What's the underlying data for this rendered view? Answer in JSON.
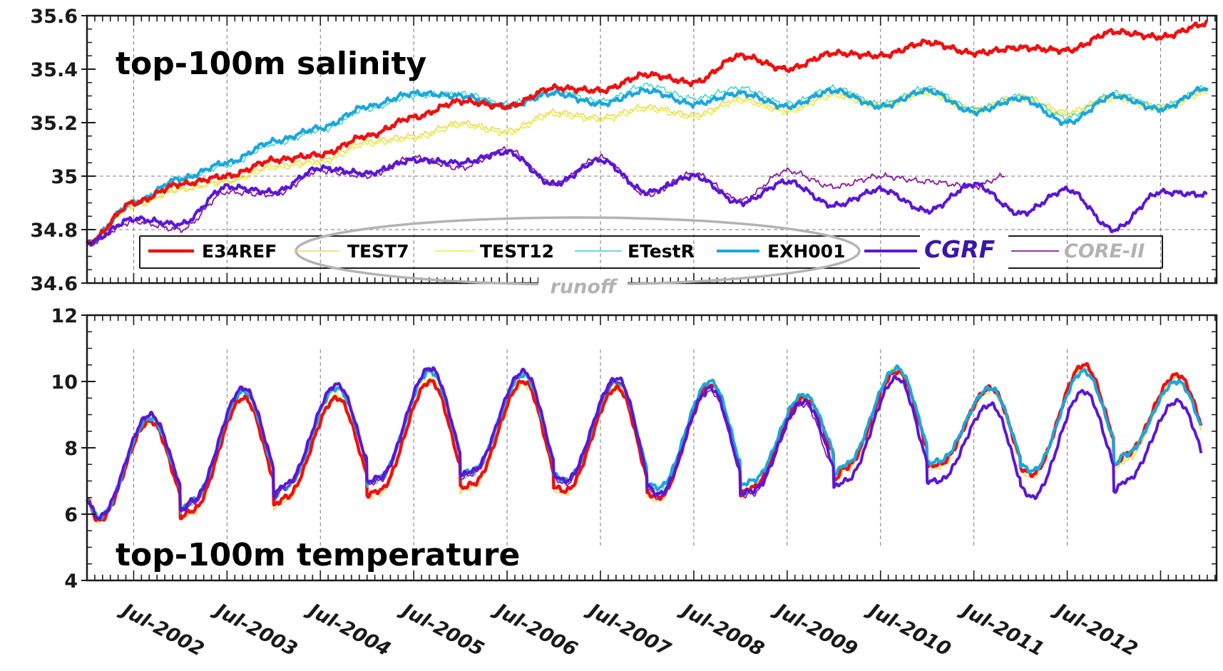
{
  "colors": {
    "E34REF": "#ee1111",
    "TEST7": "#f2d65a",
    "TEST12": "#e6f04a",
    "ETestR": "#3ad1c2",
    "EXH001": "#1aa7dc",
    "CGRF": "#5b17d4",
    "CORE-II": "#8a1a9c",
    "runoff_ellipse": "#b3b3b3",
    "core_label": "#b3b3b3"
  },
  "chart_data": [
    {
      "type": "line",
      "title": "top-100m salinity",
      "ylim": [
        34.6,
        35.6
      ],
      "yticks": [
        "34.6",
        "34.8",
        "35",
        "35.2",
        "35.4",
        "35.6"
      ],
      "x_range": [
        "2002-01",
        "2014-01"
      ],
      "grid": true,
      "legend": {
        "placement": "bottom-inside",
        "entries": [
          "E34REF",
          "TEST7",
          "TEST12",
          "ETestR",
          "EXH001",
          "CGRF",
          "CORE-II"
        ],
        "annotation": "runoff"
      },
      "series": [
        {
          "name": "E34REF",
          "x": [
            2002.0,
            2002.5,
            2003.0,
            2003.5,
            2004.0,
            2004.5,
            2005.0,
            2005.5,
            2006.0,
            2006.5,
            2007.0,
            2007.5,
            2008.0,
            2008.5,
            2009.0,
            2009.5,
            2010.0,
            2010.5,
            2011.0,
            2011.5,
            2012.0,
            2012.5,
            2013.0,
            2013.5,
            2014.0
          ],
          "y": [
            34.75,
            34.9,
            34.97,
            35.0,
            35.06,
            35.08,
            35.15,
            35.22,
            35.28,
            35.26,
            35.33,
            35.32,
            35.38,
            35.35,
            35.45,
            35.4,
            35.46,
            35.45,
            35.5,
            35.46,
            35.48,
            35.47,
            35.54,
            35.52,
            35.57
          ]
        },
        {
          "name": "TEST7",
          "x": [
            2002.0,
            2002.5,
            2003.0,
            2003.5,
            2004.0,
            2004.5,
            2005.0,
            2005.5,
            2006.0,
            2006.5,
            2007.0,
            2007.5,
            2008.0,
            2008.5,
            2009.0,
            2009.5,
            2010.0,
            2010.5,
            2011.0,
            2011.5,
            2012.0,
            2012.5,
            2013.0,
            2013.5,
            2014.0
          ],
          "y": [
            34.75,
            34.89,
            34.95,
            34.98,
            35.04,
            35.06,
            35.13,
            35.15,
            35.2,
            35.17,
            35.24,
            35.22,
            35.26,
            35.23,
            35.29,
            35.25,
            35.31,
            35.27,
            35.32,
            35.25,
            35.3,
            35.24,
            35.3,
            35.26,
            35.32
          ]
        },
        {
          "name": "TEST12",
          "x": [
            2002.0,
            2002.5,
            2003.0,
            2003.5,
            2004.0,
            2004.5,
            2005.0,
            2005.5,
            2006.0,
            2006.5,
            2007.0,
            2007.5,
            2008.0,
            2008.5,
            2009.0,
            2009.5,
            2010.0,
            2010.5,
            2011.0,
            2011.5,
            2012.0,
            2012.5,
            2013.0,
            2013.5,
            2014.0
          ],
          "y": [
            34.75,
            34.89,
            34.95,
            34.98,
            35.03,
            35.05,
            35.12,
            35.14,
            35.19,
            35.16,
            35.23,
            35.21,
            35.25,
            35.22,
            35.28,
            35.24,
            35.3,
            35.26,
            35.31,
            35.24,
            35.29,
            35.23,
            35.29,
            35.25,
            35.31
          ]
        },
        {
          "name": "ETestR",
          "x": [
            2002.0,
            2002.5,
            2003.0,
            2003.5,
            2004.0,
            2004.5,
            2005.0,
            2005.5,
            2006.0,
            2006.5,
            2007.0,
            2007.5,
            2008.0,
            2008.5,
            2009.0,
            2009.5,
            2010.0,
            2010.5,
            2011.0,
            2011.5,
            2012.0,
            2012.5,
            2013.0,
            2013.5,
            2014.0
          ],
          "y": [
            34.75,
            34.9,
            34.99,
            35.04,
            35.12,
            35.17,
            35.25,
            35.3,
            35.31,
            35.27,
            35.32,
            35.28,
            35.34,
            35.29,
            35.33,
            35.27,
            35.33,
            35.27,
            35.33,
            35.25,
            35.3,
            35.22,
            35.31,
            35.26,
            35.33
          ]
        },
        {
          "name": "EXH001",
          "x": [
            2002.0,
            2002.5,
            2003.0,
            2003.5,
            2004.0,
            2004.5,
            2005.0,
            2005.5,
            2006.0,
            2006.5,
            2007.0,
            2007.5,
            2008.0,
            2008.5,
            2009.0,
            2009.5,
            2010.0,
            2010.5,
            2011.0,
            2011.5,
            2012.0,
            2012.5,
            2013.0,
            2013.5,
            2014.0
          ],
          "y": [
            34.75,
            34.9,
            34.99,
            35.05,
            35.13,
            35.18,
            35.26,
            35.31,
            35.3,
            35.26,
            35.31,
            35.27,
            35.32,
            35.27,
            35.31,
            35.26,
            35.32,
            35.26,
            35.32,
            35.24,
            35.29,
            35.2,
            35.3,
            35.25,
            35.33
          ]
        },
        {
          "name": "CGRF",
          "x": [
            2002.0,
            2002.5,
            2003.0,
            2003.5,
            2004.0,
            2004.5,
            2005.0,
            2005.5,
            2006.0,
            2006.5,
            2007.0,
            2007.5,
            2008.0,
            2008.5,
            2009.0,
            2009.5,
            2010.0,
            2010.5,
            2011.0,
            2011.5,
            2012.0,
            2012.5,
            2013.0,
            2013.5,
            2014.0
          ],
          "y": [
            34.75,
            34.84,
            34.82,
            34.96,
            34.94,
            35.03,
            35.01,
            35.06,
            35.05,
            35.09,
            34.97,
            35.06,
            34.94,
            35.0,
            34.9,
            34.98,
            34.89,
            34.95,
            34.87,
            34.97,
            34.86,
            34.95,
            34.8,
            34.94,
            34.93
          ]
        },
        {
          "name": "CORE-II",
          "x": [
            2002.0,
            2002.5,
            2003.0,
            2003.5,
            2004.0,
            2004.5,
            2005.0,
            2005.5,
            2006.0,
            2006.5,
            2007.0,
            2007.5,
            2008.0,
            2008.5,
            2009.0,
            2009.5,
            2010.0,
            2010.5,
            2011.0,
            2011.5,
            2011.83
          ],
          "y": [
            34.75,
            34.83,
            34.8,
            34.94,
            34.93,
            35.02,
            35.0,
            35.07,
            35.03,
            35.1,
            34.97,
            35.07,
            34.93,
            35.01,
            34.91,
            35.02,
            34.96,
            35.0,
            34.98,
            34.96,
            35.0
          ]
        }
      ]
    },
    {
      "type": "line",
      "title": "top-100m temperature",
      "ylim": [
        4,
        12
      ],
      "yticks": [
        "4",
        "6",
        "8",
        "10",
        "12"
      ],
      "x_range": [
        "2002-01",
        "2014-01"
      ],
      "xtick_labels": [
        "Jul-2002",
        "Jul-2003",
        "Jul-2004",
        "Jul-2005",
        "Jul-2006",
        "Jul-2007",
        "Jul-2008",
        "Jul-2009",
        "Jul-2010",
        "Jul-2011",
        "Jul-2012"
      ],
      "grid": true,
      "series": [
        {
          "name": "E34REF",
          "peaks": [
            8.8,
            9.5,
            9.5,
            10.0,
            10.0,
            9.8,
            9.9,
            9.5,
            10.3,
            9.8,
            10.5,
            10.2
          ],
          "troughs": [
            5.8,
            6.1,
            6.5,
            6.7,
            6.9,
            6.7,
            6.5,
            6.8,
            7.4,
            7.5,
            7.2,
            7.8
          ]
        },
        {
          "name": "TEST7",
          "peaks": [
            8.8,
            9.5,
            9.5,
            10.0,
            9.9,
            9.8,
            9.9,
            9.5,
            10.4,
            9.7,
            10.4,
            10.1
          ],
          "troughs": [
            5.8,
            6.0,
            6.4,
            6.6,
            6.8,
            6.6,
            6.4,
            6.7,
            7.3,
            7.4,
            7.1,
            7.6
          ]
        },
        {
          "name": "TEST12",
          "peaks": [
            8.8,
            9.5,
            9.6,
            10.1,
            10.0,
            9.9,
            9.9,
            9.6,
            10.4,
            9.8,
            10.4,
            10.0
          ],
          "troughs": [
            5.8,
            6.1,
            6.5,
            6.7,
            6.9,
            6.7,
            6.5,
            6.8,
            7.4,
            7.5,
            7.2,
            7.7
          ]
        },
        {
          "name": "ETestR",
          "peaks": [
            8.9,
            9.7,
            9.8,
            10.3,
            10.2,
            10.0,
            10.0,
            9.6,
            10.4,
            9.8,
            10.3,
            10.0
          ],
          "troughs": [
            5.9,
            6.3,
            6.8,
            7.0,
            7.2,
            7.0,
            6.7,
            7.0,
            7.5,
            7.6,
            7.3,
            7.8
          ]
        },
        {
          "name": "EXH001",
          "peaks": [
            8.9,
            9.7,
            9.8,
            10.3,
            10.2,
            10.0,
            10.0,
            9.6,
            10.4,
            9.8,
            10.3,
            10.0
          ],
          "troughs": [
            5.9,
            6.4,
            6.8,
            7.1,
            7.3,
            7.0,
            6.8,
            7.0,
            7.5,
            7.6,
            7.3,
            7.8
          ]
        },
        {
          "name": "CGRF",
          "peaks": [
            9.0,
            9.8,
            9.9,
            10.4,
            10.3,
            10.1,
            9.8,
            9.4,
            10.1,
            9.3,
            9.7,
            9.4
          ],
          "troughs": [
            5.9,
            6.4,
            6.9,
            7.1,
            7.3,
            7.0,
            6.6,
            6.7,
            7.0,
            7.0,
            6.5,
            7.0
          ]
        },
        {
          "name": "CORE-II",
          "peaks": [
            9.0,
            9.8,
            9.9,
            10.4,
            10.3,
            10.0,
            9.7,
            9.3
          ],
          "troughs": [
            5.9,
            6.3,
            6.8,
            7.0,
            7.2,
            6.9,
            6.5,
            6.6
          ]
        }
      ]
    }
  ]
}
